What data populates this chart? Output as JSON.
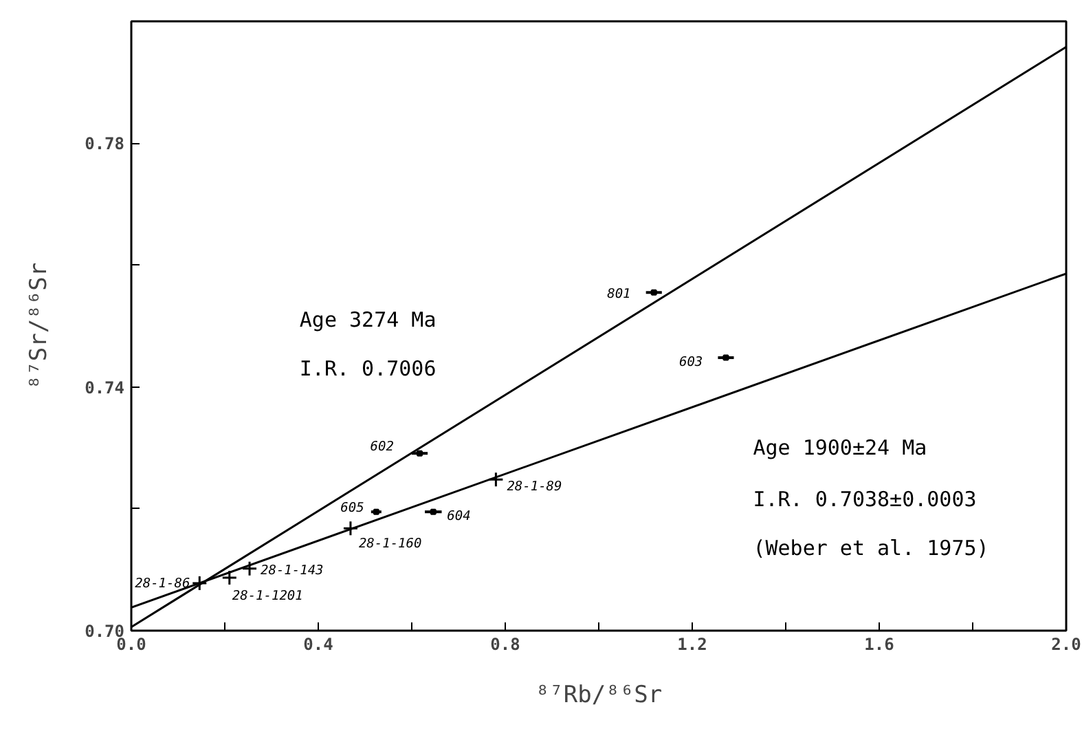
{
  "chart_data": {
    "type": "scatter",
    "xlabel": "⁸⁷Rb/⁸⁶Sr",
    "ylabel": "⁸⁷Sr/⁸⁶Sr",
    "xlim": [
      0,
      2.0
    ],
    "ylim": [
      0.7,
      0.8
    ],
    "xticks": [
      {
        "value": 0,
        "label": "0.0"
      },
      {
        "value": 0.2,
        "label": null
      },
      {
        "value": 0.4,
        "label": "0.4"
      },
      {
        "value": 0.6,
        "label": null
      },
      {
        "value": 0.8,
        "label": "0.8"
      },
      {
        "value": 1.0,
        "label": null
      },
      {
        "value": 1.2,
        "label": "1.2"
      },
      {
        "value": 1.4,
        "label": null
      },
      {
        "value": 1.6,
        "label": "1.6"
      },
      {
        "value": 1.8,
        "label": null
      },
      {
        "value": 2.0,
        "label": "2.0"
      }
    ],
    "yticks": [
      {
        "value": 0.7,
        "label": "0.70"
      },
      {
        "value": 0.72,
        "label": null
      },
      {
        "value": 0.74,
        "label": "0.74"
      },
      {
        "value": 0.76,
        "label": null
      },
      {
        "value": 0.78,
        "label": "0.78"
      }
    ],
    "grid": false,
    "series": [
      {
        "color": "#000000",
        "marker": "square",
        "x": [
          0.617,
          0.524,
          0.646,
          1.118,
          1.272
        ],
        "values": [
          0.7291,
          0.7195,
          0.7195,
          0.7555,
          0.7448
        ],
        "xerrors": [
          0.017,
          0.011,
          0.018,
          0.017,
          0.017
        ]
      },
      {
        "color": "#000000",
        "marker": "cross",
        "x": [
          0.469,
          0.78,
          0.253,
          0.21,
          0.146
        ],
        "values": [
          0.7168,
          0.7248,
          0.7102,
          0.7087,
          0.7078
        ]
      },
      {
        "type": "line",
        "color": "#000000",
        "line_style": "solid",
        "x": [
          0,
          2.0
        ],
        "values": [
          0.7006,
          0.7958
        ]
      },
      {
        "type": "line",
        "color": "#000000",
        "line_style": "solid",
        "x": [
          0,
          2.0
        ],
        "values": [
          0.7038,
          0.7586
        ]
      }
    ],
    "annotations": [
      {
        "text": "602",
        "x": 0.617,
        "y": 0.7291
      },
      {
        "text": "605",
        "x": 0.524,
        "y": 0.7195
      },
      {
        "text": "604",
        "x": 0.646,
        "y": 0.7195
      },
      {
        "text": "801",
        "x": 1.118,
        "y": 0.7555
      },
      {
        "text": "603",
        "x": 1.272,
        "y": 0.7448
      },
      {
        "text": "28-1-160",
        "x": 0.469,
        "y": 0.7168
      },
      {
        "text": "28-1-89",
        "x": 0.78,
        "y": 0.7248
      },
      {
        "text": "28-1-143",
        "x": 0.253,
        "y": 0.7102
      },
      {
        "text": "28-1-1201",
        "x": 0.21,
        "y": 0.7087
      },
      {
        "text": "28-1-86",
        "x": 0.146,
        "y": 0.7078
      },
      "Age 3274 Ma",
      "I.R. 0.7006",
      "Age 1900±24 Ma",
      "I.R. 0.7038±0.0003",
      "(Weber et al. 1975)"
    ]
  }
}
